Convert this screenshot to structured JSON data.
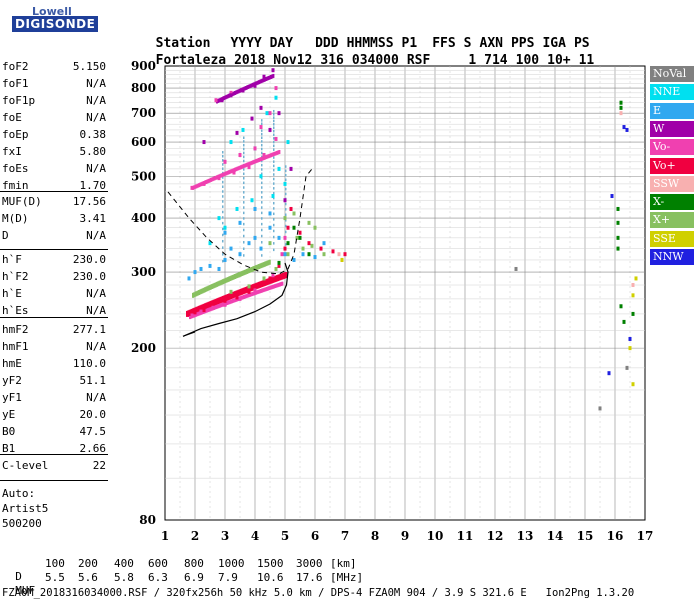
{
  "logo": {
    "line1": "Lowell",
    "line2": "DIGISONDE"
  },
  "header": {
    "labels": [
      "Station",
      "YYYY DAY",
      "DDD",
      "HHMMSS",
      "P1",
      "FFS",
      "S",
      "AXN",
      "PPS",
      "IGA",
      "PS"
    ],
    "values": [
      "Fortaleza",
      "2018 Nov12",
      "316",
      "034000",
      "RSF",
      "1",
      "714",
      "100",
      "10+",
      "11"
    ]
  },
  "params": {
    "group1": [
      {
        "label": "foF2",
        "value": "5.150"
      },
      {
        "label": "foF1",
        "value": "N/A"
      },
      {
        "label": "foF1p",
        "value": "N/A"
      },
      {
        "label": "foE",
        "value": "N/A"
      },
      {
        "label": "foEp",
        "value": "0.38"
      },
      {
        "label": "fxI",
        "value": "5.80"
      },
      {
        "label": "foEs",
        "value": "N/A"
      },
      {
        "label": "fmin",
        "value": "1.70"
      }
    ],
    "group2": [
      {
        "label": "MUF(D)",
        "value": "17.56"
      },
      {
        "label": "M(D)",
        "value": "3.41"
      },
      {
        "label": "D",
        "value": "N/A"
      }
    ],
    "group3": [
      {
        "label": "h`F",
        "value": "230.0"
      },
      {
        "label": "h`F2",
        "value": "230.0"
      },
      {
        "label": "h`E",
        "value": "N/A"
      },
      {
        "label": "h`Es",
        "value": "N/A"
      }
    ],
    "group4": [
      {
        "label": "hmF2",
        "value": "277.1"
      },
      {
        "label": "hmF1",
        "value": "N/A"
      },
      {
        "label": "hmE",
        "value": "110.0"
      },
      {
        "label": "yF2",
        "value": "51.1"
      },
      {
        "label": "yF1",
        "value": "N/A"
      },
      {
        "label": "yE",
        "value": "20.0"
      },
      {
        "label": "B0",
        "value": "47.5"
      },
      {
        "label": "B1",
        "value": "2.66"
      }
    ],
    "group5": [
      {
        "label": "C-level",
        "value": "22"
      }
    ]
  },
  "notes": {
    "auto": "Auto:",
    "artist": "Artist5",
    "version": "500200"
  },
  "footer": {
    "d_label": "D",
    "d_values": [
      "100",
      "200",
      "400",
      "600",
      "800",
      "1000",
      "1500",
      "3000",
      "[km]"
    ],
    "muf_label": "MUF",
    "muf_values": [
      "5.5",
      "5.6",
      "5.8",
      "6.3",
      "6.9",
      "7.9",
      "10.6",
      "17.6",
      "[MHz]"
    ],
    "file_line": "FZA0M_2018316034000.RSF / 320fx256h 50 kHz 5.0 km / DPS-4 FZA0M 904 / 3.9 S 321.6 E   Ion2Png 1.3.20"
  },
  "legend": [
    {
      "label": "NoVal",
      "color": "#808080"
    },
    {
      "label": "NNE",
      "color": "#00e0f0"
    },
    {
      "label": "E",
      "color": "#30a8f0"
    },
    {
      "label": "W",
      "color": "#a000a8"
    },
    {
      "label": "Vo-",
      "color": "#f040b0"
    },
    {
      "label": "Vo+",
      "color": "#f00040"
    },
    {
      "label": "SSW",
      "color": "#f8b0b0"
    },
    {
      "label": "X-",
      "color": "#008000"
    },
    {
      "label": "X+",
      "color": "#88c060"
    },
    {
      "label": "SSE",
      "color": "#d0d000"
    },
    {
      "label": "NNW",
      "color": "#2020e0"
    }
  ],
  "chart_data": {
    "type": "scatter",
    "title": "",
    "xlabel": "",
    "ylabel": "",
    "xlim": [
      1,
      17
    ],
    "ylim": [
      80,
      900
    ],
    "y_scale": "log",
    "x_ticks": [
      1,
      2,
      3,
      4,
      5,
      6,
      7,
      8,
      9,
      10,
      11,
      12,
      13,
      14,
      15,
      16,
      17
    ],
    "y_ticks": [
      80,
      200,
      300,
      400,
      500,
      600,
      700,
      800,
      900
    ],
    "grid": true,
    "series": [
      {
        "name": "E",
        "color": "#30a8f0",
        "points": [
          [
            1.8,
            290
          ],
          [
            2.0,
            300
          ],
          [
            2.2,
            305
          ],
          [
            2.5,
            310
          ],
          [
            2.8,
            305
          ],
          [
            3.0,
            320
          ],
          [
            3.2,
            340
          ],
          [
            3.5,
            330
          ],
          [
            3.8,
            350
          ],
          [
            4.0,
            360
          ],
          [
            4.2,
            340
          ],
          [
            4.5,
            380
          ],
          [
            4.8,
            360
          ],
          [
            5.0,
            330
          ],
          [
            5.3,
            320
          ],
          [
            5.6,
            330
          ],
          [
            6.0,
            325
          ],
          [
            6.3,
            350
          ],
          [
            3.0,
            370
          ],
          [
            3.5,
            390
          ],
          [
            4.0,
            420
          ],
          [
            4.5,
            410
          ]
        ]
      },
      {
        "name": "NNE",
        "color": "#00e0f0",
        "points": [
          [
            2.5,
            350
          ],
          [
            3.0,
            380
          ],
          [
            3.4,
            420
          ],
          [
            3.9,
            440
          ],
          [
            4.2,
            500
          ],
          [
            4.6,
            450
          ],
          [
            4.8,
            520
          ],
          [
            5.1,
            600
          ],
          [
            3.2,
            600
          ],
          [
            3.6,
            640
          ],
          [
            4.0,
            580
          ],
          [
            4.4,
            700
          ],
          [
            4.7,
            760
          ],
          [
            2.8,
            400
          ],
          [
            5.0,
            480
          ]
        ]
      },
      {
        "name": "Vo+",
        "color": "#f00040",
        "points": [
          [
            1.8,
            240
          ],
          [
            2.0,
            242
          ],
          [
            2.3,
            245
          ],
          [
            2.6,
            250
          ],
          [
            3.0,
            255
          ],
          [
            3.4,
            262
          ],
          [
            3.8,
            270
          ],
          [
            4.2,
            280
          ],
          [
            4.5,
            290
          ],
          [
            4.8,
            310
          ],
          [
            5.0,
            340
          ],
          [
            5.1,
            380
          ],
          [
            5.2,
            420
          ],
          [
            5.5,
            370
          ],
          [
            5.8,
            350
          ],
          [
            6.2,
            340
          ],
          [
            6.6,
            335
          ],
          [
            7.0,
            330
          ],
          [
            6.9,
            320
          ]
        ]
      },
      {
        "name": "Vo-",
        "color": "#f040b0",
        "points": [
          [
            1.9,
            238
          ],
          [
            2.2,
            243
          ],
          [
            2.6,
            248
          ],
          [
            3.0,
            252
          ],
          [
            3.5,
            260
          ],
          [
            4.0,
            272
          ],
          [
            4.6,
            295
          ],
          [
            4.9,
            330
          ],
          [
            5.0,
            360
          ],
          [
            1.9,
            470
          ],
          [
            2.3,
            480
          ],
          [
            2.8,
            495
          ],
          [
            3.3,
            510
          ],
          [
            3.8,
            525
          ],
          [
            4.3,
            560
          ],
          [
            4.7,
            610
          ],
          [
            3.0,
            540
          ],
          [
            3.5,
            560
          ],
          [
            4.0,
            580
          ],
          [
            4.2,
            650
          ],
          [
            4.5,
            700
          ],
          [
            4.7,
            800
          ],
          [
            2.7,
            750
          ],
          [
            3.2,
            780
          ]
        ]
      },
      {
        "name": "W",
        "color": "#a000a8",
        "points": [
          [
            2.9,
            750
          ],
          [
            3.2,
            770
          ],
          [
            3.6,
            790
          ],
          [
            4.0,
            810
          ],
          [
            4.3,
            850
          ],
          [
            4.6,
            880
          ],
          [
            2.3,
            600
          ],
          [
            3.4,
            630
          ],
          [
            3.9,
            680
          ],
          [
            4.2,
            720
          ],
          [
            4.5,
            640
          ],
          [
            4.8,
            700
          ],
          [
            5.0,
            440
          ],
          [
            5.2,
            520
          ]
        ]
      },
      {
        "name": "X+",
        "color": "#88c060",
        "points": [
          [
            3.2,
            270
          ],
          [
            3.8,
            278
          ],
          [
            4.3,
            290
          ],
          [
            4.7,
            305
          ],
          [
            5.1,
            330
          ],
          [
            5.4,
            360
          ],
          [
            5.6,
            340
          ],
          [
            5.9,
            345
          ],
          [
            6.3,
            330
          ],
          [
            4.5,
            350
          ],
          [
            5.0,
            400
          ],
          [
            5.3,
            410
          ],
          [
            5.8,
            390
          ],
          [
            6.0,
            380
          ]
        ]
      },
      {
        "name": "X-",
        "color": "#008000",
        "points": [
          [
            4.8,
            315
          ],
          [
            5.1,
            350
          ],
          [
            5.3,
            380
          ],
          [
            5.5,
            360
          ],
          [
            5.8,
            330
          ],
          [
            16.1,
            390
          ],
          [
            16.1,
            360
          ],
          [
            16.1,
            340
          ],
          [
            16.1,
            420
          ],
          [
            16.2,
            250
          ],
          [
            16.3,
            230
          ],
          [
            16.6,
            240
          ],
          [
            16.2,
            740
          ],
          [
            16.2,
            720
          ]
        ]
      },
      {
        "name": "NNW",
        "color": "#2020e0",
        "points": [
          [
            15.9,
            450
          ],
          [
            16.3,
            650
          ],
          [
            16.4,
            640
          ],
          [
            15.8,
            175
          ],
          [
            16.5,
            210
          ]
        ]
      },
      {
        "name": "SSE",
        "color": "#d0d000",
        "points": [
          [
            16.7,
            290
          ],
          [
            16.6,
            265
          ],
          [
            16.5,
            200
          ],
          [
            16.6,
            165
          ],
          [
            6.9,
            320
          ]
        ]
      },
      {
        "name": "SSW",
        "color": "#f8b0b0",
        "points": [
          [
            16.2,
            700
          ],
          [
            6.8,
            330
          ],
          [
            16.6,
            280
          ]
        ]
      },
      {
        "name": "NoVal",
        "color": "#808080",
        "points": [
          [
            15.5,
            145
          ],
          [
            16.4,
            180
          ],
          [
            12.7,
            305
          ]
        ]
      }
    ],
    "profile_solid": [
      [
        1.6,
        213
      ],
      [
        2.2,
        222
      ],
      [
        2.8,
        228
      ],
      [
        3.4,
        234
      ],
      [
        4.0,
        243
      ],
      [
        4.5,
        253
      ],
      [
        4.9,
        265
      ],
      [
        5.05,
        280
      ],
      [
        5.1,
        300
      ],
      [
        5.0,
        315
      ]
    ],
    "trace_dashed": [
      [
        1.1,
        460
      ],
      [
        1.8,
        400
      ],
      [
        2.4,
        360
      ],
      [
        3.0,
        330
      ],
      [
        3.6,
        312
      ],
      [
        4.2,
        300
      ],
      [
        4.8,
        297
      ],
      [
        5.1,
        305
      ],
      [
        5.3,
        330
      ],
      [
        5.5,
        400
      ],
      [
        5.7,
        500
      ],
      [
        5.9,
        520
      ]
    ],
    "stripes": [
      [
        2.9,
        320,
        580
      ],
      [
        3.6,
        330,
        620
      ],
      [
        4.2,
        330,
        680
      ],
      [
        4.6,
        340,
        720
      ],
      [
        5.0,
        350,
        540
      ]
    ],
    "baseline": [
      [
        1.6,
        213
      ],
      [
        2.0,
        218
      ]
    ]
  }
}
